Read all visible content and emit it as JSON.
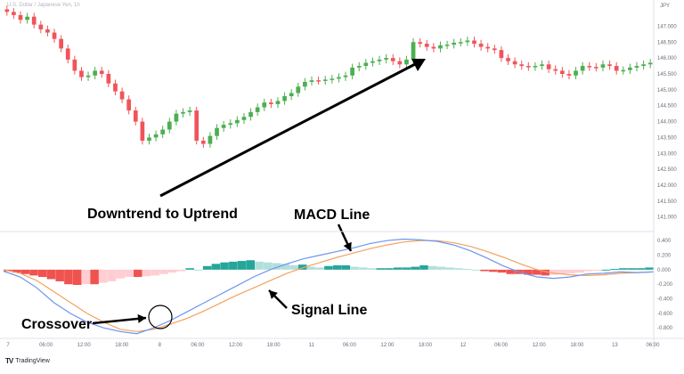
{
  "header": {
    "symbol_title": "U.S. Dollar / Japanese Yen, 1h",
    "currency": "JPY"
  },
  "footer": {
    "brand": "TradingView"
  },
  "annotations": {
    "downtrend_to_uptrend": "Downtrend to Uptrend",
    "macd_line": "MACD Line",
    "signal_line": "Signal Line",
    "crossover": "Crossover"
  },
  "colors": {
    "up": "#4caf50",
    "down": "#f0545a",
    "hist_pos_strong": "#26a69a",
    "hist_pos_weak": "#b2dfdb",
    "hist_neg_strong": "#ef5350",
    "hist_neg_weak": "#ffcdd2",
    "macd": "#6c95ef",
    "signal": "#f4a15d"
  },
  "chart_data": [
    {
      "type": "candlestick",
      "title": "U.S. Dollar / Japanese Yen, 1h",
      "y_unit": "JPY",
      "ylim": [
        140.6,
        147.6
      ],
      "yticks": [
        "147.000",
        "146.500",
        "146.000",
        "145.500",
        "145.000",
        "144.500",
        "144.000",
        "143.500",
        "143.000",
        "142.500",
        "142.000",
        "141.500",
        "141.000"
      ],
      "closes": [
        147.45,
        147.35,
        147.2,
        147.3,
        147.05,
        146.9,
        146.8,
        146.6,
        146.3,
        145.95,
        145.6,
        145.4,
        145.45,
        145.6,
        145.5,
        145.2,
        144.95,
        144.7,
        144.35,
        144.0,
        143.4,
        143.5,
        143.6,
        143.75,
        144.0,
        144.25,
        144.3,
        144.35,
        143.4,
        143.3,
        143.55,
        143.8,
        143.9,
        143.95,
        144.05,
        144.15,
        144.3,
        144.45,
        144.6,
        144.55,
        144.65,
        144.8,
        144.9,
        145.1,
        145.25,
        145.3,
        145.28,
        145.32,
        145.35,
        145.4,
        145.45,
        145.7,
        145.75,
        145.85,
        145.9,
        145.95,
        146.0,
        145.9,
        145.8,
        145.95,
        146.5,
        146.45,
        146.35,
        146.3,
        146.4,
        146.42,
        146.48,
        146.5,
        146.55,
        146.45,
        146.35,
        146.3,
        146.25,
        146.0,
        145.9,
        145.8,
        145.75,
        145.72,
        145.75,
        145.8,
        145.65,
        145.6,
        145.5,
        145.45,
        145.6,
        145.75,
        145.72,
        145.7,
        145.8,
        145.75,
        145.6,
        145.62,
        145.7,
        145.75,
        145.8,
        145.85
      ],
      "x_tick_labels": [
        "7",
        "06:00",
        "12:00",
        "18:00",
        "8",
        "06:00",
        "12:00",
        "18:00",
        "11",
        "06:00",
        "12:00",
        "18:00",
        "12",
        "06:00",
        "12:00",
        "18:00",
        "13",
        "06:00"
      ]
    },
    {
      "type": "macd",
      "yticks": [
        "0.400",
        "0.200",
        "0.000",
        "-0.200",
        "-0.400",
        "-0.600",
        "-0.800"
      ],
      "ylim": [
        -0.92,
        0.5
      ],
      "histogram": [
        -0.02,
        -0.04,
        -0.06,
        -0.08,
        -0.1,
        -0.13,
        -0.16,
        -0.2,
        -0.21,
        -0.2,
        -0.2,
        -0.18,
        -0.16,
        -0.12,
        -0.1,
        -0.1,
        -0.09,
        -0.08,
        -0.06,
        -0.04,
        -0.02,
        0.02,
        0.0,
        0.05,
        0.08,
        0.1,
        0.11,
        0.12,
        0.13,
        0.11,
        0.1,
        0.09,
        0.08,
        0.06,
        0.07,
        0.04,
        0.03,
        0.05,
        0.06,
        0.06,
        0.04,
        0.03,
        0.02,
        0.02,
        0.02,
        0.03,
        0.03,
        0.04,
        0.06,
        0.05,
        0.04,
        0.03,
        0.02,
        0.01,
        0.0,
        -0.02,
        -0.03,
        -0.04,
        -0.06,
        -0.06,
        -0.07,
        -0.07,
        -0.08,
        -0.07,
        -0.06,
        -0.05,
        -0.04,
        -0.02,
        -0.01,
        0.0,
        0.01,
        0.02,
        0.02,
        0.02,
        0.03
      ],
      "macd_line": [
        -0.02,
        -0.1,
        -0.25,
        -0.45,
        -0.6,
        -0.72,
        -0.8,
        -0.85,
        -0.88,
        -0.8,
        -0.7,
        -0.58,
        -0.46,
        -0.34,
        -0.22,
        -0.1,
        0.0,
        0.08,
        0.15,
        0.2,
        0.25,
        0.3,
        0.36,
        0.4,
        0.42,
        0.41,
        0.39,
        0.34,
        0.26,
        0.16,
        0.05,
        -0.04,
        -0.1,
        -0.12,
        -0.1,
        -0.06,
        -0.05,
        -0.03,
        -0.04,
        -0.03
      ],
      "signal_line": [
        0.0,
        -0.05,
        -0.15,
        -0.3,
        -0.45,
        -0.6,
        -0.72,
        -0.82,
        -0.85,
        -0.82,
        -0.75,
        -0.67,
        -0.57,
        -0.46,
        -0.35,
        -0.25,
        -0.15,
        -0.05,
        0.03,
        0.1,
        0.17,
        0.23,
        0.29,
        0.34,
        0.38,
        0.4,
        0.4,
        0.37,
        0.32,
        0.25,
        0.17,
        0.08,
        0.0,
        -0.05,
        -0.07,
        -0.08,
        -0.07,
        -0.05,
        -0.04,
        -0.03
      ]
    }
  ]
}
